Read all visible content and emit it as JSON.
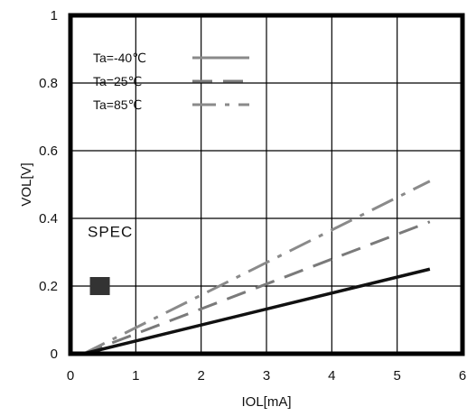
{
  "chart_data": {
    "type": "line",
    "title": "",
    "xlabel": "IOL[mA]",
    "ylabel": "VOL[V]",
    "xlim": [
      0,
      6
    ],
    "ylim": [
      0,
      1
    ],
    "x_ticks": [
      0,
      1,
      2,
      3,
      4,
      5,
      6
    ],
    "y_ticks": [
      0,
      0.2,
      0.4,
      0.6,
      0.8,
      1
    ],
    "x_tick_labels": [
      "0",
      "1",
      "2",
      "3",
      "4",
      "5",
      "6"
    ],
    "y_tick_labels": [
      "0",
      "0.2",
      "0.4",
      "0.6",
      "0.8",
      "1"
    ],
    "grid": true,
    "legend_position": "top-left",
    "series": [
      {
        "name": "Ta=-40℃",
        "style": "solid",
        "color": "#8a8a8a",
        "x": [
          0.2,
          5.5
        ],
        "y": [
          0.0,
          0.25
        ]
      },
      {
        "name": "Ta=25℃",
        "style": "dashed",
        "color": "#7a7a7a",
        "x": [
          0.2,
          5.5
        ],
        "y": [
          0.0,
          0.39
        ]
      },
      {
        "name": "Ta=85℃",
        "style": "dashdot",
        "color": "#8a8a8a",
        "x": [
          0.2,
          5.5
        ],
        "y": [
          0.0,
          0.51
        ]
      },
      {
        "name": "",
        "style": "solid",
        "color": "#111111",
        "x": [
          0.2,
          5.5
        ],
        "y": [
          0.0,
          0.25
        ]
      }
    ],
    "annotations": [
      {
        "text": "SPEC",
        "x": 0.45,
        "y": 0.2,
        "marker": "square",
        "color": "#333333"
      }
    ]
  }
}
